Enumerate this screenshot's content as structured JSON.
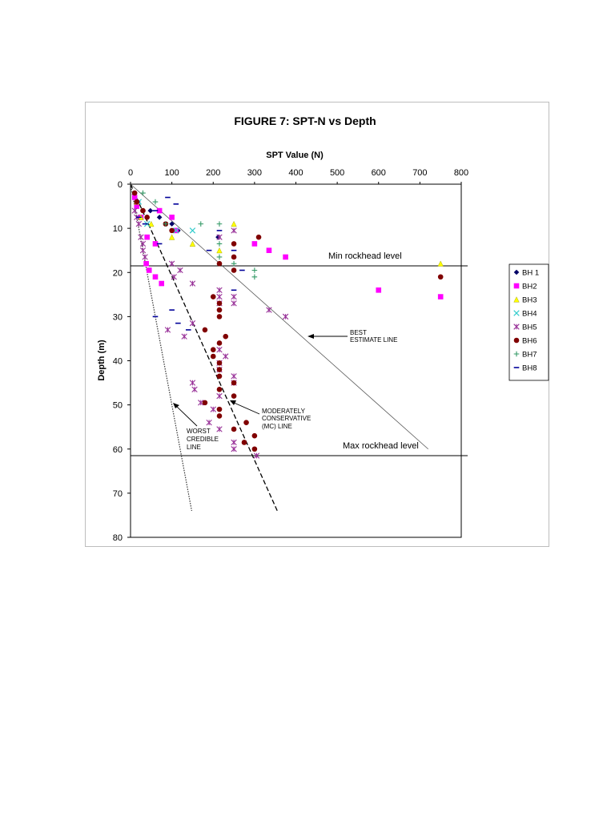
{
  "chart_data": {
    "type": "scatter",
    "title": "FIGURE 7: SPT-N vs Depth",
    "xlabel": "SPT Value (N)",
    "ylabel": "Depth (m)",
    "xlim": [
      0,
      800
    ],
    "ylim": [
      0,
      80
    ],
    "x_ticks": [
      0,
      100,
      200,
      300,
      400,
      500,
      600,
      700,
      800
    ],
    "y_ticks": [
      0,
      10,
      20,
      30,
      40,
      50,
      60,
      70,
      80
    ],
    "x_axis_position": "top",
    "y_inverted": true,
    "grid": false,
    "legend_position": "right",
    "series": [
      {
        "name": "BH 1",
        "marker": "diamond",
        "color": "#000066",
        "points": [
          [
            10,
            2
          ],
          [
            18,
            4
          ],
          [
            30,
            6
          ],
          [
            48,
            6
          ],
          [
            70,
            7.5
          ],
          [
            100,
            9
          ],
          [
            115,
            10.5
          ],
          [
            212,
            12
          ]
        ]
      },
      {
        "name": "BH2",
        "marker": "square",
        "color": "#ff00ff",
        "points": [
          [
            10,
            3
          ],
          [
            15,
            5
          ],
          [
            25,
            7.5
          ],
          [
            70,
            6
          ],
          [
            100,
            7.5
          ],
          [
            110,
            10.5
          ],
          [
            40,
            12
          ],
          [
            60,
            13.5
          ],
          [
            300,
            13.5
          ],
          [
            335,
            15
          ],
          [
            375,
            16.5
          ],
          [
            38,
            18
          ],
          [
            45,
            19.5
          ],
          [
            60,
            21
          ],
          [
            75,
            22.5
          ],
          [
            600,
            24
          ],
          [
            750,
            25.5
          ]
        ]
      },
      {
        "name": "BH3",
        "marker": "triangle",
        "color": "#ffff00",
        "points": [
          [
            15,
            4
          ],
          [
            25,
            7.5
          ],
          [
            50,
            9
          ],
          [
            100,
            12
          ],
          [
            150,
            13.5
          ],
          [
            215,
            15
          ],
          [
            250,
            9
          ],
          [
            750,
            18
          ]
        ]
      },
      {
        "name": "BH4",
        "marker": "x",
        "color": "#33cccc",
        "points": [
          [
            20,
            4
          ],
          [
            40,
            9
          ],
          [
            110,
            10.5
          ],
          [
            150,
            10.5
          ]
        ]
      },
      {
        "name": "BH5",
        "marker": "star",
        "color": "#993399",
        "points": [
          [
            10,
            6
          ],
          [
            15,
            7.5
          ],
          [
            20,
            9
          ],
          [
            25,
            12
          ],
          [
            30,
            13.5
          ],
          [
            30,
            15
          ],
          [
            35,
            16.5
          ],
          [
            100,
            18
          ],
          [
            120,
            19.5
          ],
          [
            105,
            21
          ],
          [
            150,
            22.5
          ],
          [
            215,
            24
          ],
          [
            215,
            25.5
          ],
          [
            250,
            25.5
          ],
          [
            215,
            27
          ],
          [
            250,
            27
          ],
          [
            335,
            28.5
          ],
          [
            375,
            30
          ],
          [
            150,
            31.5
          ],
          [
            90,
            33
          ],
          [
            130,
            34.5
          ],
          [
            215,
            37.5
          ],
          [
            230,
            39
          ],
          [
            215,
            40.5
          ],
          [
            215,
            42
          ],
          [
            250,
            43.5
          ],
          [
            250,
            45
          ],
          [
            150,
            45
          ],
          [
            155,
            46.5
          ],
          [
            215,
            48
          ],
          [
            170,
            49.5
          ],
          [
            200,
            51
          ],
          [
            190,
            54
          ],
          [
            215,
            55.5
          ],
          [
            250,
            58.5
          ],
          [
            250,
            60
          ],
          [
            305,
            61.5
          ],
          [
            215,
            12
          ],
          [
            250,
            10.5
          ]
        ]
      },
      {
        "name": "BH6",
        "marker": "circle",
        "color": "#800000",
        "points": [
          [
            10,
            2
          ],
          [
            15,
            4
          ],
          [
            30,
            6
          ],
          [
            40,
            7.5
          ],
          [
            85,
            9
          ],
          [
            100,
            10.5
          ],
          [
            310,
            12
          ],
          [
            250,
            13.5
          ],
          [
            250,
            16.5
          ],
          [
            215,
            18
          ],
          [
            250,
            19.5
          ],
          [
            750,
            21
          ],
          [
            200,
            25.5
          ],
          [
            215,
            27
          ],
          [
            215,
            28.5
          ],
          [
            215,
            30
          ],
          [
            180,
            33
          ],
          [
            230,
            34.5
          ],
          [
            215,
            36
          ],
          [
            200,
            37.5
          ],
          [
            200,
            39
          ],
          [
            215,
            40.5
          ],
          [
            215,
            42
          ],
          [
            215,
            43.5
          ],
          [
            250,
            45
          ],
          [
            215,
            46.5
          ],
          [
            250,
            48
          ],
          [
            180,
            49.5
          ],
          [
            215,
            51
          ],
          [
            215,
            52.5
          ],
          [
            280,
            54
          ],
          [
            250,
            55.5
          ],
          [
            300,
            57
          ],
          [
            275,
            58.5
          ],
          [
            300,
            60
          ]
        ]
      },
      {
        "name": "BH7",
        "marker": "plus",
        "color": "#339966",
        "points": [
          [
            30,
            2
          ],
          [
            60,
            4
          ],
          [
            85,
            9
          ],
          [
            170,
            9
          ],
          [
            215,
            9
          ],
          [
            215,
            13.5
          ],
          [
            250,
            18
          ],
          [
            300,
            19.5
          ],
          [
            300,
            21
          ],
          [
            215,
            16.5
          ]
        ]
      },
      {
        "name": "BH8",
        "marker": "dash",
        "color": "#000099",
        "points": [
          [
            90,
            3
          ],
          [
            110,
            4.5
          ],
          [
            60,
            6
          ],
          [
            20,
            7.5
          ],
          [
            35,
            9
          ],
          [
            215,
            10.5
          ],
          [
            250,
            15
          ],
          [
            270,
            19.5
          ],
          [
            250,
            24
          ],
          [
            100,
            28.5
          ],
          [
            60,
            30
          ],
          [
            115,
            31.5
          ],
          [
            140,
            33
          ],
          [
            190,
            15
          ],
          [
            70,
            13.5
          ]
        ]
      }
    ],
    "reference_lines": [
      {
        "label": "BEST ESTIMATE LINE",
        "style": "solid-thin",
        "from": [
          0,
          0
        ],
        "to": [
          720,
          60
        ]
      },
      {
        "label": "MODERATELY CONSERVATIVE (MC) LINE",
        "style": "dashed",
        "from": [
          0,
          0
        ],
        "to": [
          355,
          74
        ]
      },
      {
        "label": "WORST CREDIBLE LINE",
        "style": "dotted",
        "from": [
          0,
          0
        ],
        "to": [
          148,
          74
        ]
      }
    ],
    "horizontal_levels": [
      {
        "label": "Min rockhead level",
        "depth": 18.5
      },
      {
        "label": "Max rockhead level",
        "depth": 61.5
      }
    ]
  }
}
